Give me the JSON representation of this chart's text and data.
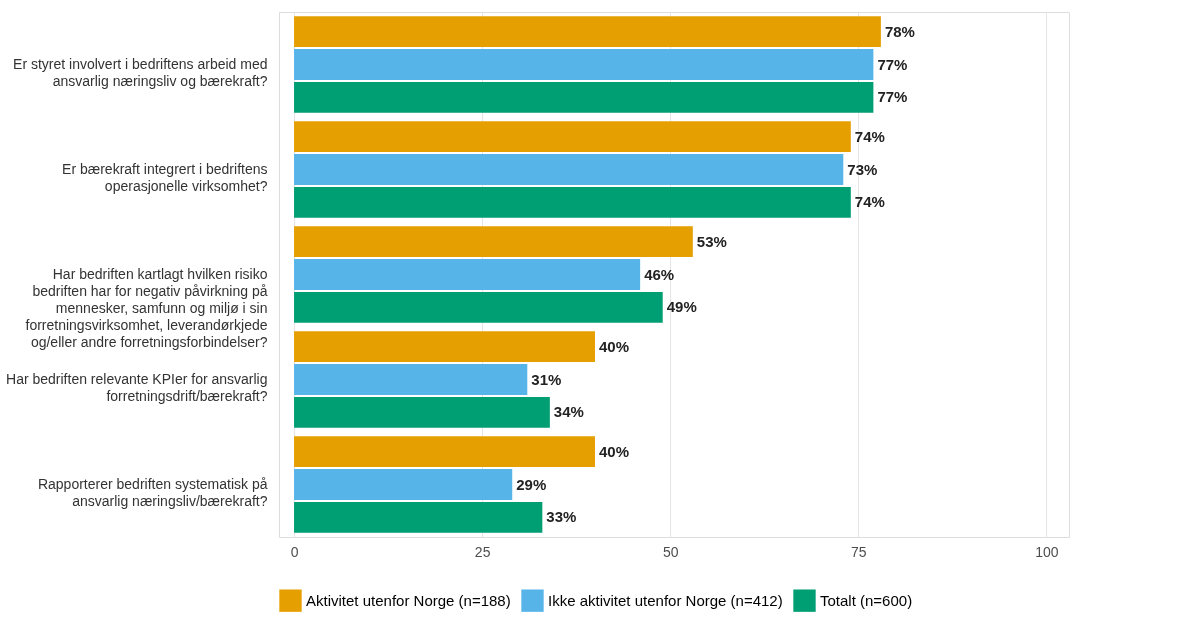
{
  "chart_data": {
    "type": "bar",
    "orientation": "horizontal",
    "categories": [
      "Er styret involvert i bedriftens arbeid med\nansvarlig næringsliv og bærekraft?",
      "Er bærekraft integrert i bedriftens\noperasjonelle virksomhet?",
      "Har bedriften kartlagt hvilken risiko\nbedriften har for negativ påvirkning på\nmennesker, samfunn og miljø i sin\nforretningsvirksomhet, leverandørkjede\nog/eller andre forretningsforbindelser?",
      "Har bedriften relevante KPIer for ansvarlig\nforretningsdrift/bærekraft?",
      "Rapporterer bedriften systematisk på\nansvarlig næringsliv/bærekraft?"
    ],
    "series": [
      {
        "name": "Aktivitet utenfor Norge (n=188)",
        "color": "#e69f00",
        "values": [
          78,
          74,
          53,
          40,
          40
        ],
        "value_labels": [
          "78%",
          "74%",
          "53%",
          "40%",
          "40%"
        ]
      },
      {
        "name": "Ikke aktivitet utenfor Norge (n=412)",
        "color": "#56b4e9",
        "values": [
          77,
          73,
          46,
          31,
          29
        ],
        "value_labels": [
          "77%",
          "73%",
          "46%",
          "31%",
          "29%"
        ]
      },
      {
        "name": "Totalt (n=600)",
        "color": "#009e73",
        "values": [
          77,
          74,
          49,
          34,
          33
        ],
        "value_labels": [
          "77%",
          "74%",
          "49%",
          "34%",
          "33%"
        ]
      }
    ],
    "xlim": [
      -2,
      103
    ],
    "xticks": [
      0,
      25,
      50,
      75,
      100
    ],
    "grid": "x",
    "legend": "bottom"
  }
}
